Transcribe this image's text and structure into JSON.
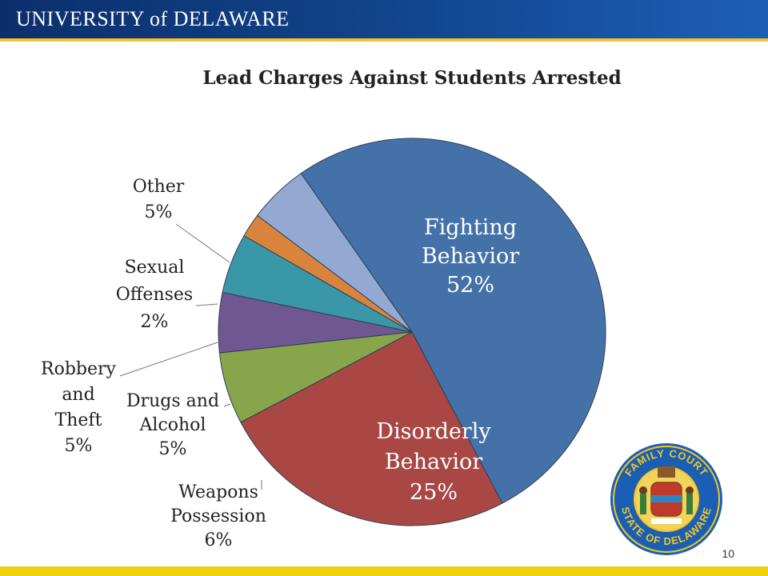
{
  "header": {
    "logo_text": "UNIVERSITY of DELAWARE"
  },
  "slide": {
    "page_number": "10"
  },
  "seal": {
    "top_text": "FAMILY COURT",
    "bottom_text": "STATE OF DELAWARE"
  },
  "chart_data": {
    "type": "pie",
    "title": "Lead Charges Against Students Arrested",
    "slices": [
      {
        "label": "Fighting Behavior",
        "value": 52,
        "pct_label": "52%",
        "color": "#4472a8"
      },
      {
        "label": "Disorderly Behavior",
        "value": 25,
        "pct_label": "25%",
        "color": "#a94745"
      },
      {
        "label": "Weapons Possession",
        "value": 6,
        "pct_label": "6%",
        "color": "#87a64b"
      },
      {
        "label": "Drugs and Alcohol",
        "value": 5,
        "pct_label": "5%",
        "color": "#6f5891"
      },
      {
        "label": "Robbery and Theft",
        "value": 5,
        "pct_label": "5%",
        "color": "#3a97a8"
      },
      {
        "label": "Sexual Offenses",
        "value": 2,
        "pct_label": "2%",
        "color": "#d9843d"
      },
      {
        "label": "Other",
        "value": 5,
        "pct_label": "5%",
        "color": "#93a9d2"
      }
    ]
  }
}
